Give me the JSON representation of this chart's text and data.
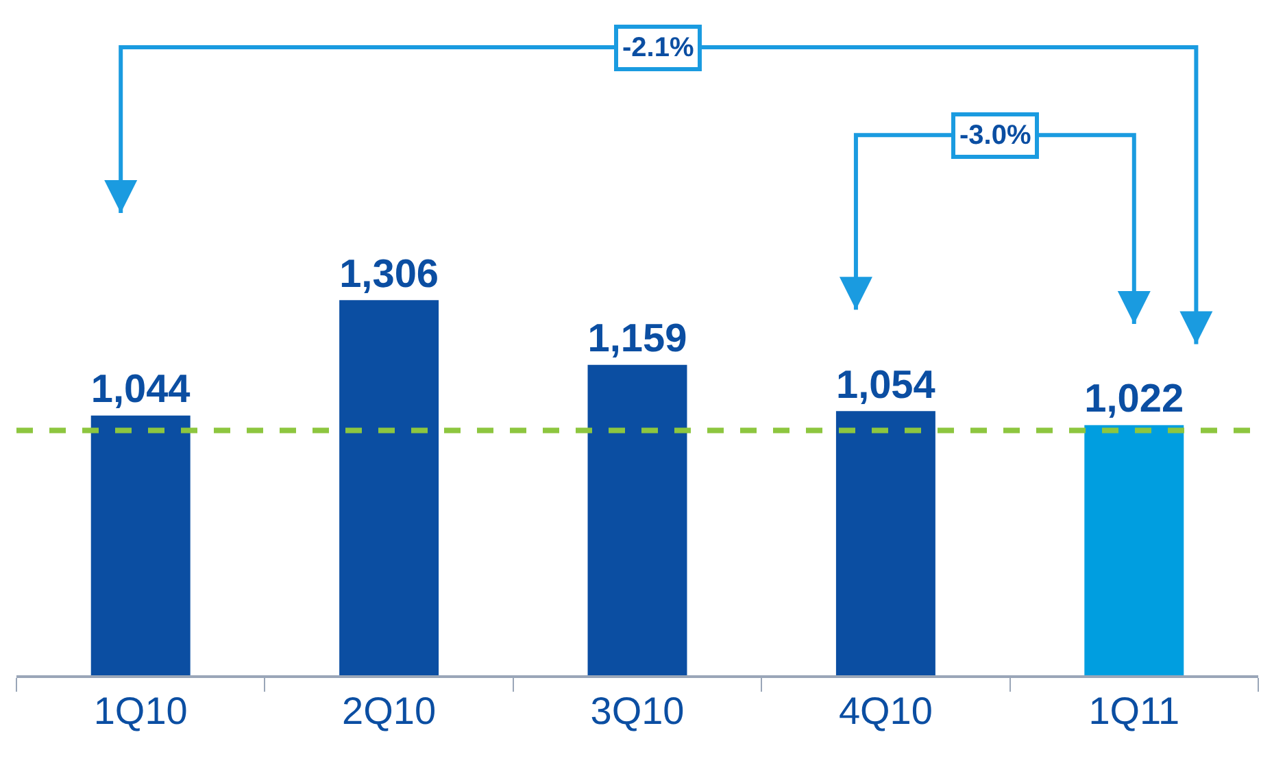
{
  "chart_data": {
    "type": "bar",
    "categories": [
      "1Q10",
      "2Q10",
      "3Q10",
      "4Q10",
      "1Q11"
    ],
    "values": [
      1044,
      1306,
      1159,
      1054,
      1022
    ],
    "colors": [
      "#0b4ea2",
      "#0b4ea2",
      "#0b4ea2",
      "#0b4ea2",
      "#009ee0"
    ],
    "value_labels": [
      "1,044",
      "1,306",
      "1,159",
      "1,054",
      "1,022"
    ],
    "tick_labels": "x",
    "ref_lines": [
      {
        "axis": "y",
        "value": 1010,
        "color": "#8dc63f",
        "line_style": "dashed"
      }
    ],
    "annotations": [
      "-2.1%",
      "-3.0%"
    ]
  }
}
